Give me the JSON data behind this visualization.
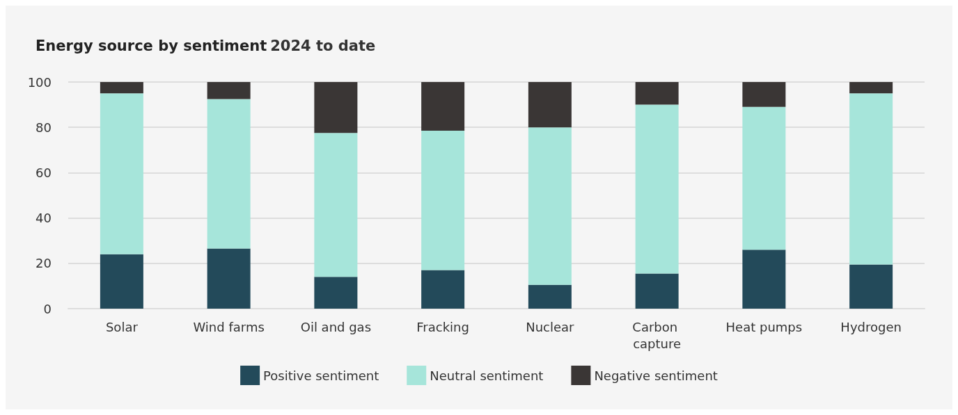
{
  "chart_data": {
    "type": "bar",
    "title": "Energy source by sentiment",
    "subtitle": "2024 to date",
    "categories": [
      "Solar",
      "Wind farms",
      "Oil and gas",
      "Fracking",
      "Nuclear",
      "Carbon capture",
      "Heat pumps",
      "Hydrogen"
    ],
    "stacked": true,
    "series": [
      {
        "name": "Positive sentiment",
        "color": "#234a5a",
        "values": [
          24,
          26.5,
          14,
          17,
          10.5,
          15.5,
          26,
          19.5
        ]
      },
      {
        "name": "Neutral sentiment",
        "color": "#a6e5da",
        "values": [
          71,
          66,
          63.5,
          61.5,
          69.5,
          74.5,
          63,
          75.5
        ]
      },
      {
        "name": "Negative sentiment",
        "color": "#3a3635",
        "values": [
          5,
          7.5,
          22.5,
          21.5,
          20,
          10,
          11,
          5
        ]
      }
    ],
    "ylim": [
      0,
      100
    ],
    "yticks": [
      0,
      20,
      40,
      60,
      80,
      100
    ],
    "grid": "y",
    "legend": "bottom"
  }
}
